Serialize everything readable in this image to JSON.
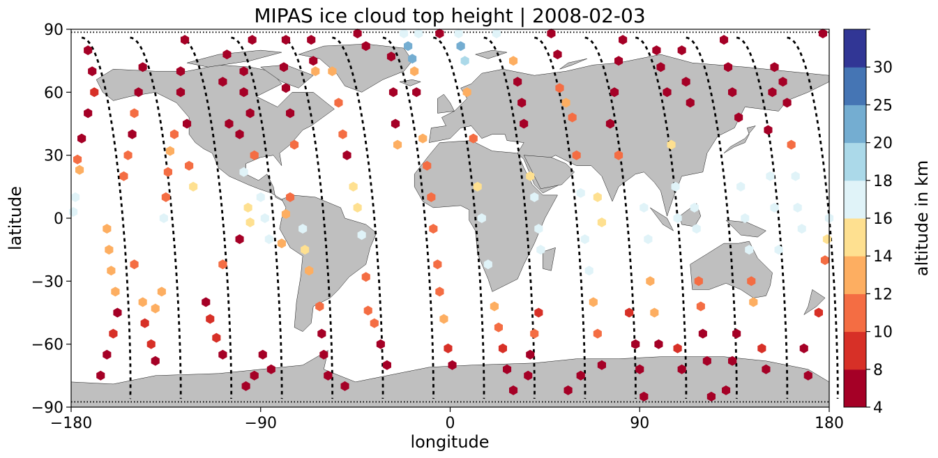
{
  "chart_data": {
    "type": "scatter",
    "title": "MIPAS ice cloud top height | 2008-02-03",
    "xlabel": "longitude",
    "ylabel": "latitude",
    "xlim": [
      -180,
      180
    ],
    "ylim": [
      -90,
      90
    ],
    "x_ticks": [
      -180,
      -90,
      0,
      90,
      180
    ],
    "y_ticks": [
      -90,
      -60,
      -30,
      0,
      30,
      60,
      90
    ],
    "x_tick_labels": [
      "−180",
      "−90",
      "0",
      "90",
      "180"
    ],
    "y_tick_labels": [
      "−90",
      "−60",
      "−30",
      "0",
      "30",
      "60",
      "90"
    ],
    "grid": false,
    "colorbar": {
      "label": "altitude in km",
      "boundaries": [
        4,
        8,
        10,
        12,
        14,
        16,
        18,
        20,
        25,
        30
      ],
      "tick_labels": [
        "4",
        "8",
        "10",
        "12",
        "14",
        "16",
        "18",
        "20",
        "25",
        "30"
      ],
      "colors": [
        "#a50026",
        "#d73027",
        "#f46d43",
        "#fdae61",
        "#fee090",
        "#e0f3f8",
        "#abd9e9",
        "#74add1",
        "#4575b4",
        "#313695"
      ]
    },
    "colors": {
      "land": "#bfbfbf",
      "ocean": "#ffffff",
      "track": "#000000"
    },
    "tracks": [
      {
        "lon0": -175,
        "lon1": -152
      },
      {
        "lon0": -152,
        "lon1": -128
      },
      {
        "lon0": -128,
        "lon1": -104
      },
      {
        "lon0": -104,
        "lon1": -80
      },
      {
        "lon0": -80,
        "lon1": -56
      },
      {
        "lon0": -56,
        "lon1": -32
      },
      {
        "lon0": -32,
        "lon1": -8
      },
      {
        "lon0": -8,
        "lon1": 16
      },
      {
        "lon0": 16,
        "lon1": 40
      },
      {
        "lon0": 40,
        "lon1": 64
      },
      {
        "lon0": 64,
        "lon1": 88
      },
      {
        "lon0": 88,
        "lon1": 112
      },
      {
        "lon0": 112,
        "lon1": 136
      },
      {
        "lon0": 136,
        "lon1": 160
      },
      {
        "lon0": 160,
        "lon1": 184
      }
    ],
    "points": [
      {
        "lon": -172,
        "lat": 80,
        "alt": 6
      },
      {
        "lon": -170,
        "lat": 70,
        "alt": 6
      },
      {
        "lon": -169,
        "lat": 60,
        "alt": 8
      },
      {
        "lon": -172,
        "lat": 50,
        "alt": 6
      },
      {
        "lon": -175,
        "lat": 38,
        "alt": 6
      },
      {
        "lon": -177,
        "lat": 28,
        "alt": 11
      },
      {
        "lon": -176,
        "lat": 23,
        "alt": 13
      },
      {
        "lon": -178,
        "lat": 10,
        "alt": 17
      },
      {
        "lon": -179,
        "lat": 3,
        "alt": 17
      },
      {
        "lon": -158,
        "lat": -45,
        "alt": 6
      },
      {
        "lon": -160,
        "lat": -55,
        "alt": 9
      },
      {
        "lon": -163,
        "lat": -65,
        "alt": 6
      },
      {
        "lon": -166,
        "lat": -75,
        "alt": 6
      },
      {
        "lon": -159,
        "lat": -35,
        "alt": 13
      },
      {
        "lon": -161,
        "lat": -25,
        "alt": 13
      },
      {
        "lon": -162,
        "lat": -15,
        "alt": 13
      },
      {
        "lon": -163,
        "lat": -5,
        "alt": 13
      },
      {
        "lon": -155,
        "lat": 20,
        "alt": 11
      },
      {
        "lon": -153,
        "lat": 30,
        "alt": 11
      },
      {
        "lon": -151,
        "lat": 40,
        "alt": 6
      },
      {
        "lon": -150,
        "lat": 50,
        "alt": 11
      },
      {
        "lon": -148,
        "lat": 60,
        "alt": 6
      },
      {
        "lon": -146,
        "lat": 72,
        "alt": 6
      },
      {
        "lon": -150,
        "lat": -22,
        "alt": 11
      },
      {
        "lon": -146,
        "lat": -40,
        "alt": 13
      },
      {
        "lon": -140,
        "lat": -43,
        "alt": 13
      },
      {
        "lon": -137,
        "lat": -35,
        "alt": 13
      },
      {
        "lon": -145,
        "lat": -50,
        "alt": 9
      },
      {
        "lon": -142,
        "lat": -60,
        "alt": 9
      },
      {
        "lon": -140,
        "lat": -68,
        "alt": 6
      },
      {
        "lon": -136,
        "lat": 0,
        "alt": 17
      },
      {
        "lon": -135,
        "lat": 10,
        "alt": 11
      },
      {
        "lon": -134,
        "lat": 22,
        "alt": 11
      },
      {
        "lon": -133,
        "lat": 32,
        "alt": 13
      },
      {
        "lon": -131,
        "lat": 40,
        "alt": 11
      },
      {
        "lon": -124,
        "lat": 25,
        "alt": 11
      },
      {
        "lon": -122,
        "lat": 15,
        "alt": 15
      },
      {
        "lon": -125,
        "lat": 45,
        "alt": 6
      },
      {
        "lon": -128,
        "lat": 60,
        "alt": 6
      },
      {
        "lon": -128,
        "lat": 70,
        "alt": 6
      },
      {
        "lon": -126,
        "lat": 85,
        "alt": 6
      },
      {
        "lon": -114,
        "lat": -48,
        "alt": 9
      },
      {
        "lon": -111,
        "lat": -57,
        "alt": 9
      },
      {
        "lon": -108,
        "lat": -65,
        "alt": 6
      },
      {
        "lon": -116,
        "lat": -40,
        "alt": 6
      },
      {
        "lon": -108,
        "lat": -22,
        "alt": 11
      },
      {
        "lon": -100,
        "lat": -10,
        "alt": 6
      },
      {
        "lon": -105,
        "lat": 45,
        "alt": 6
      },
      {
        "lon": -108,
        "lat": 65,
        "alt": 6
      },
      {
        "lon": -106,
        "lat": 78,
        "alt": 6
      },
      {
        "lon": -100,
        "lat": 40,
        "alt": 6
      },
      {
        "lon": -98,
        "lat": 22,
        "alt": 17
      },
      {
        "lon": -96,
        "lat": 5,
        "alt": 15
      },
      {
        "lon": -95,
        "lat": -2,
        "alt": 15
      },
      {
        "lon": -94,
        "lat": 85,
        "alt": 6
      },
      {
        "lon": -98,
        "lat": 70,
        "alt": 6
      },
      {
        "lon": -98,
        "lat": 60,
        "alt": 6
      },
      {
        "lon": -95,
        "lat": 50,
        "alt": 6
      },
      {
        "lon": -93,
        "lat": 30,
        "alt": 11
      },
      {
        "lon": -90,
        "lat": 10,
        "alt": 17
      },
      {
        "lon": -88,
        "lat": 0,
        "alt": 17
      },
      {
        "lon": -86,
        "lat": -10,
        "alt": 17
      },
      {
        "lon": -89,
        "lat": -65,
        "alt": 6
      },
      {
        "lon": -85,
        "lat": -72,
        "alt": 6
      },
      {
        "lon": -93,
        "lat": -75,
        "alt": 6
      },
      {
        "lon": -97,
        "lat": -80,
        "alt": 6
      },
      {
        "lon": -80,
        "lat": -12,
        "alt": 13
      },
      {
        "lon": -78,
        "lat": 85,
        "alt": 6
      },
      {
        "lon": -79,
        "lat": 72,
        "alt": 6
      },
      {
        "lon": -78,
        "lat": 62,
        "alt": 6
      },
      {
        "lon": -76,
        "lat": 50,
        "alt": 6
      },
      {
        "lon": -74,
        "lat": 35,
        "alt": 11
      },
      {
        "lon": -76,
        "lat": 10,
        "alt": 11
      },
      {
        "lon": -78,
        "lat": 2,
        "alt": 13
      },
      {
        "lon": -70,
        "lat": -5,
        "alt": 17
      },
      {
        "lon": -69,
        "lat": -15,
        "alt": 15
      },
      {
        "lon": -67,
        "lat": -25,
        "alt": 13
      },
      {
        "lon": -62,
        "lat": -42,
        "alt": 11
      },
      {
        "lon": -61,
        "lat": -55,
        "alt": 6
      },
      {
        "lon": -60,
        "lat": -65,
        "alt": 6
      },
      {
        "lon": -58,
        "lat": -75,
        "alt": 6
      },
      {
        "lon": -66,
        "lat": 85,
        "alt": 6
      },
      {
        "lon": -65,
        "lat": 75,
        "alt": 6
      },
      {
        "lon": -64,
        "lat": 70,
        "alt": 13
      },
      {
        "lon": -56,
        "lat": 70,
        "alt": 13
      },
      {
        "lon": -53,
        "lat": 55,
        "alt": 11
      },
      {
        "lon": -51,
        "lat": 40,
        "alt": 11
      },
      {
        "lon": -49,
        "lat": 30,
        "alt": 6
      },
      {
        "lon": -46,
        "lat": 15,
        "alt": 15
      },
      {
        "lon": -44,
        "lat": 5,
        "alt": 15
      },
      {
        "lon": -42,
        "lat": -8,
        "alt": 17
      },
      {
        "lon": -40,
        "lat": -28,
        "alt": 11
      },
      {
        "lon": -39,
        "lat": -44,
        "alt": 11
      },
      {
        "lon": -36,
        "lat": -50,
        "alt": 11
      },
      {
        "lon": -33,
        "lat": -60,
        "alt": 6
      },
      {
        "lon": -30,
        "lat": -70,
        "alt": 6
      },
      {
        "lon": -58,
        "lat": -75,
        "alt": 6
      },
      {
        "lon": -50,
        "lat": -80,
        "alt": 6
      },
      {
        "lon": -44,
        "lat": 88,
        "alt": 6
      },
      {
        "lon": -40,
        "lat": 82,
        "alt": 6
      },
      {
        "lon": -28,
        "lat": 77,
        "alt": 6
      },
      {
        "lon": -27,
        "lat": 60,
        "alt": 6
      },
      {
        "lon": -26,
        "lat": 45,
        "alt": 6
      },
      {
        "lon": -25,
        "lat": 35,
        "alt": 13
      },
      {
        "lon": -22,
        "lat": 88,
        "alt": 17
      },
      {
        "lon": -20,
        "lat": 82,
        "alt": 22
      },
      {
        "lon": -18,
        "lat": 76,
        "alt": 22
      },
      {
        "lon": -17,
        "lat": 70,
        "alt": 13
      },
      {
        "lon": -16,
        "lat": 60,
        "alt": 6
      },
      {
        "lon": -13,
        "lat": 38,
        "alt": 13
      },
      {
        "lon": -11,
        "lat": 25,
        "alt": 11
      },
      {
        "lon": -9,
        "lat": 10,
        "alt": 11
      },
      {
        "lon": -8,
        "lat": -5,
        "alt": 11
      },
      {
        "lon": -6,
        "lat": -22,
        "alt": 11
      },
      {
        "lon": -5,
        "lat": -35,
        "alt": 11
      },
      {
        "lon": -3,
        "lat": -48,
        "alt": 13
      },
      {
        "lon": -1,
        "lat": -62,
        "alt": 9
      },
      {
        "lon": 1,
        "lat": -70,
        "alt": 6
      },
      {
        "lon": -15,
        "lat": 88,
        "alt": 17
      },
      {
        "lon": -5,
        "lat": 88,
        "alt": 6
      },
      {
        "lon": 4,
        "lat": 88,
        "alt": 17
      },
      {
        "lon": 5,
        "lat": 82,
        "alt": 22
      },
      {
        "lon": 7,
        "lat": 75,
        "alt": 19
      },
      {
        "lon": 8,
        "lat": 60,
        "alt": 13
      },
      {
        "lon": 11,
        "lat": 38,
        "alt": 11
      },
      {
        "lon": 13,
        "lat": 15,
        "alt": 15
      },
      {
        "lon": 15,
        "lat": 0,
        "alt": 17
      },
      {
        "lon": 18,
        "lat": -22,
        "alt": 17
      },
      {
        "lon": 21,
        "lat": -42,
        "alt": 13
      },
      {
        "lon": 23,
        "lat": -52,
        "alt": 11
      },
      {
        "lon": 25,
        "lat": -62,
        "alt": 9
      },
      {
        "lon": 27,
        "lat": -72,
        "alt": 6
      },
      {
        "lon": 30,
        "lat": -82,
        "alt": 6
      },
      {
        "lon": 22,
        "lat": 88,
        "alt": 17
      },
      {
        "lon": 30,
        "lat": 75,
        "alt": 13
      },
      {
        "lon": 32,
        "lat": 65,
        "alt": 6
      },
      {
        "lon": 34,
        "lat": 55,
        "alt": 6
      },
      {
        "lon": 35,
        "lat": 45,
        "alt": 6
      },
      {
        "lon": 38,
        "lat": 20,
        "alt": 15
      },
      {
        "lon": 40,
        "lat": 10,
        "alt": 17
      },
      {
        "lon": 42,
        "lat": -5,
        "alt": 17
      },
      {
        "lon": 43,
        "lat": -15,
        "alt": 17
      },
      {
        "lon": 42,
        "lat": -45,
        "alt": 9
      },
      {
        "lon": 40,
        "lat": -55,
        "alt": 11
      },
      {
        "lon": 38,
        "lat": -65,
        "alt": 6
      },
      {
        "lon": 37,
        "lat": -75,
        "alt": 6
      },
      {
        "lon": 48,
        "lat": 88,
        "alt": 6
      },
      {
        "lon": 51,
        "lat": 78,
        "alt": 6
      },
      {
        "lon": 52,
        "lat": 62,
        "alt": 11
      },
      {
        "lon": 55,
        "lat": 55,
        "alt": 13
      },
      {
        "lon": 58,
        "lat": 48,
        "alt": 11
      },
      {
        "lon": 60,
        "lat": 30,
        "alt": 11
      },
      {
        "lon": 62,
        "lat": 12,
        "alt": 17
      },
      {
        "lon": 64,
        "lat": -10,
        "alt": 17
      },
      {
        "lon": 66,
        "lat": -25,
        "alt": 17
      },
      {
        "lon": 68,
        "lat": -40,
        "alt": 13
      },
      {
        "lon": 70,
        "lat": -55,
        "alt": 11
      },
      {
        "lon": 72,
        "lat": -70,
        "alt": 6
      },
      {
        "lon": 62,
        "lat": -75,
        "alt": 6
      },
      {
        "lon": 56,
        "lat": -82,
        "alt": 6
      },
      {
        "lon": 70,
        "lat": 10,
        "alt": 15
      },
      {
        "lon": 72,
        "lat": -2,
        "alt": 15
      },
      {
        "lon": 76,
        "lat": 45,
        "alt": 6
      },
      {
        "lon": 78,
        "lat": 60,
        "alt": 6
      },
      {
        "lon": 80,
        "lat": 75,
        "alt": 6
      },
      {
        "lon": 82,
        "lat": 85,
        "alt": 6
      },
      {
        "lon": 80,
        "lat": 30,
        "alt": 11
      },
      {
        "lon": 85,
        "lat": -45,
        "alt": 9
      },
      {
        "lon": 88,
        "lat": -60,
        "alt": 6
      },
      {
        "lon": 90,
        "lat": -72,
        "alt": 6
      },
      {
        "lon": 92,
        "lat": -85,
        "alt": 6
      },
      {
        "lon": 92,
        "lat": 5,
        "alt": 17
      },
      {
        "lon": 94,
        "lat": -10,
        "alt": 17
      },
      {
        "lon": 95,
        "lat": -30,
        "alt": 13
      },
      {
        "lon": 97,
        "lat": -45,
        "alt": 13
      },
      {
        "lon": 99,
        "lat": -60,
        "alt": 6
      },
      {
        "lon": 98,
        "lat": 80,
        "alt": 6
      },
      {
        "lon": 100,
        "lat": 72,
        "alt": 6
      },
      {
        "lon": 103,
        "lat": 60,
        "alt": 6
      },
      {
        "lon": 105,
        "lat": 35,
        "alt": 15
      },
      {
        "lon": 107,
        "lat": 15,
        "alt": 17
      },
      {
        "lon": 108,
        "lat": 0,
        "alt": 17
      },
      {
        "lon": 108,
        "lat": -62,
        "alt": 9
      },
      {
        "lon": 110,
        "lat": -72,
        "alt": 6
      },
      {
        "lon": 110,
        "lat": 80,
        "alt": 6
      },
      {
        "lon": 112,
        "lat": 65,
        "alt": 6
      },
      {
        "lon": 114,
        "lat": 55,
        "alt": 6
      },
      {
        "lon": 116,
        "lat": 5,
        "alt": 17
      },
      {
        "lon": 117,
        "lat": -5,
        "alt": 17
      },
      {
        "lon": 118,
        "lat": -30,
        "alt": 11
      },
      {
        "lon": 119,
        "lat": -42,
        "alt": 11
      },
      {
        "lon": 120,
        "lat": -55,
        "alt": 6
      },
      {
        "lon": 122,
        "lat": -68,
        "alt": 6
      },
      {
        "lon": 124,
        "lat": -85,
        "alt": 6
      },
      {
        "lon": 130,
        "lat": 85,
        "alt": 6
      },
      {
        "lon": 132,
        "lat": 72,
        "alt": 6
      },
      {
        "lon": 134,
        "lat": 60,
        "alt": 6
      },
      {
        "lon": 137,
        "lat": 48,
        "alt": 6
      },
      {
        "lon": 138,
        "lat": 15,
        "alt": 17
      },
      {
        "lon": 140,
        "lat": 0,
        "alt": 17
      },
      {
        "lon": 142,
        "lat": -15,
        "alt": 17
      },
      {
        "lon": 143,
        "lat": -30,
        "alt": 11
      },
      {
        "lon": 144,
        "lat": -40,
        "alt": 13
      },
      {
        "lon": 136,
        "lat": -55,
        "alt": 6
      },
      {
        "lon": 134,
        "lat": -68,
        "alt": 6
      },
      {
        "lon": 131,
        "lat": -82,
        "alt": 6
      },
      {
        "lon": 148,
        "lat": -62,
        "alt": 9
      },
      {
        "lon": 150,
        "lat": -72,
        "alt": 6
      },
      {
        "lon": 151,
        "lat": 42,
        "alt": 6
      },
      {
        "lon": 153,
        "lat": 60,
        "alt": 6
      },
      {
        "lon": 154,
        "lat": 72,
        "alt": 6
      },
      {
        "lon": 152,
        "lat": 20,
        "alt": 17
      },
      {
        "lon": 154,
        "lat": 5,
        "alt": 17
      },
      {
        "lon": 156,
        "lat": -15,
        "alt": 17
      },
      {
        "lon": 158,
        "lat": 65,
        "alt": 6
      },
      {
        "lon": 160,
        "lat": 55,
        "alt": 6
      },
      {
        "lon": 162,
        "lat": 35,
        "alt": 11
      },
      {
        "lon": 164,
        "lat": 20,
        "alt": 17
      },
      {
        "lon": 165,
        "lat": 5,
        "alt": 17
      },
      {
        "lon": 167,
        "lat": -5,
        "alt": 17
      },
      {
        "lon": 168,
        "lat": -62,
        "alt": 6
      },
      {
        "lon": 170,
        "lat": -75,
        "alt": 6
      },
      {
        "lon": 175,
        "lat": -45,
        "alt": 9
      },
      {
        "lon": 177,
        "lat": 88,
        "alt": 6
      },
      {
        "lon": 178,
        "lat": -20,
        "alt": 11
      },
      {
        "lon": 179,
        "lat": -10,
        "alt": 15
      },
      {
        "lon": 180,
        "lat": 0,
        "alt": 17
      }
    ]
  }
}
